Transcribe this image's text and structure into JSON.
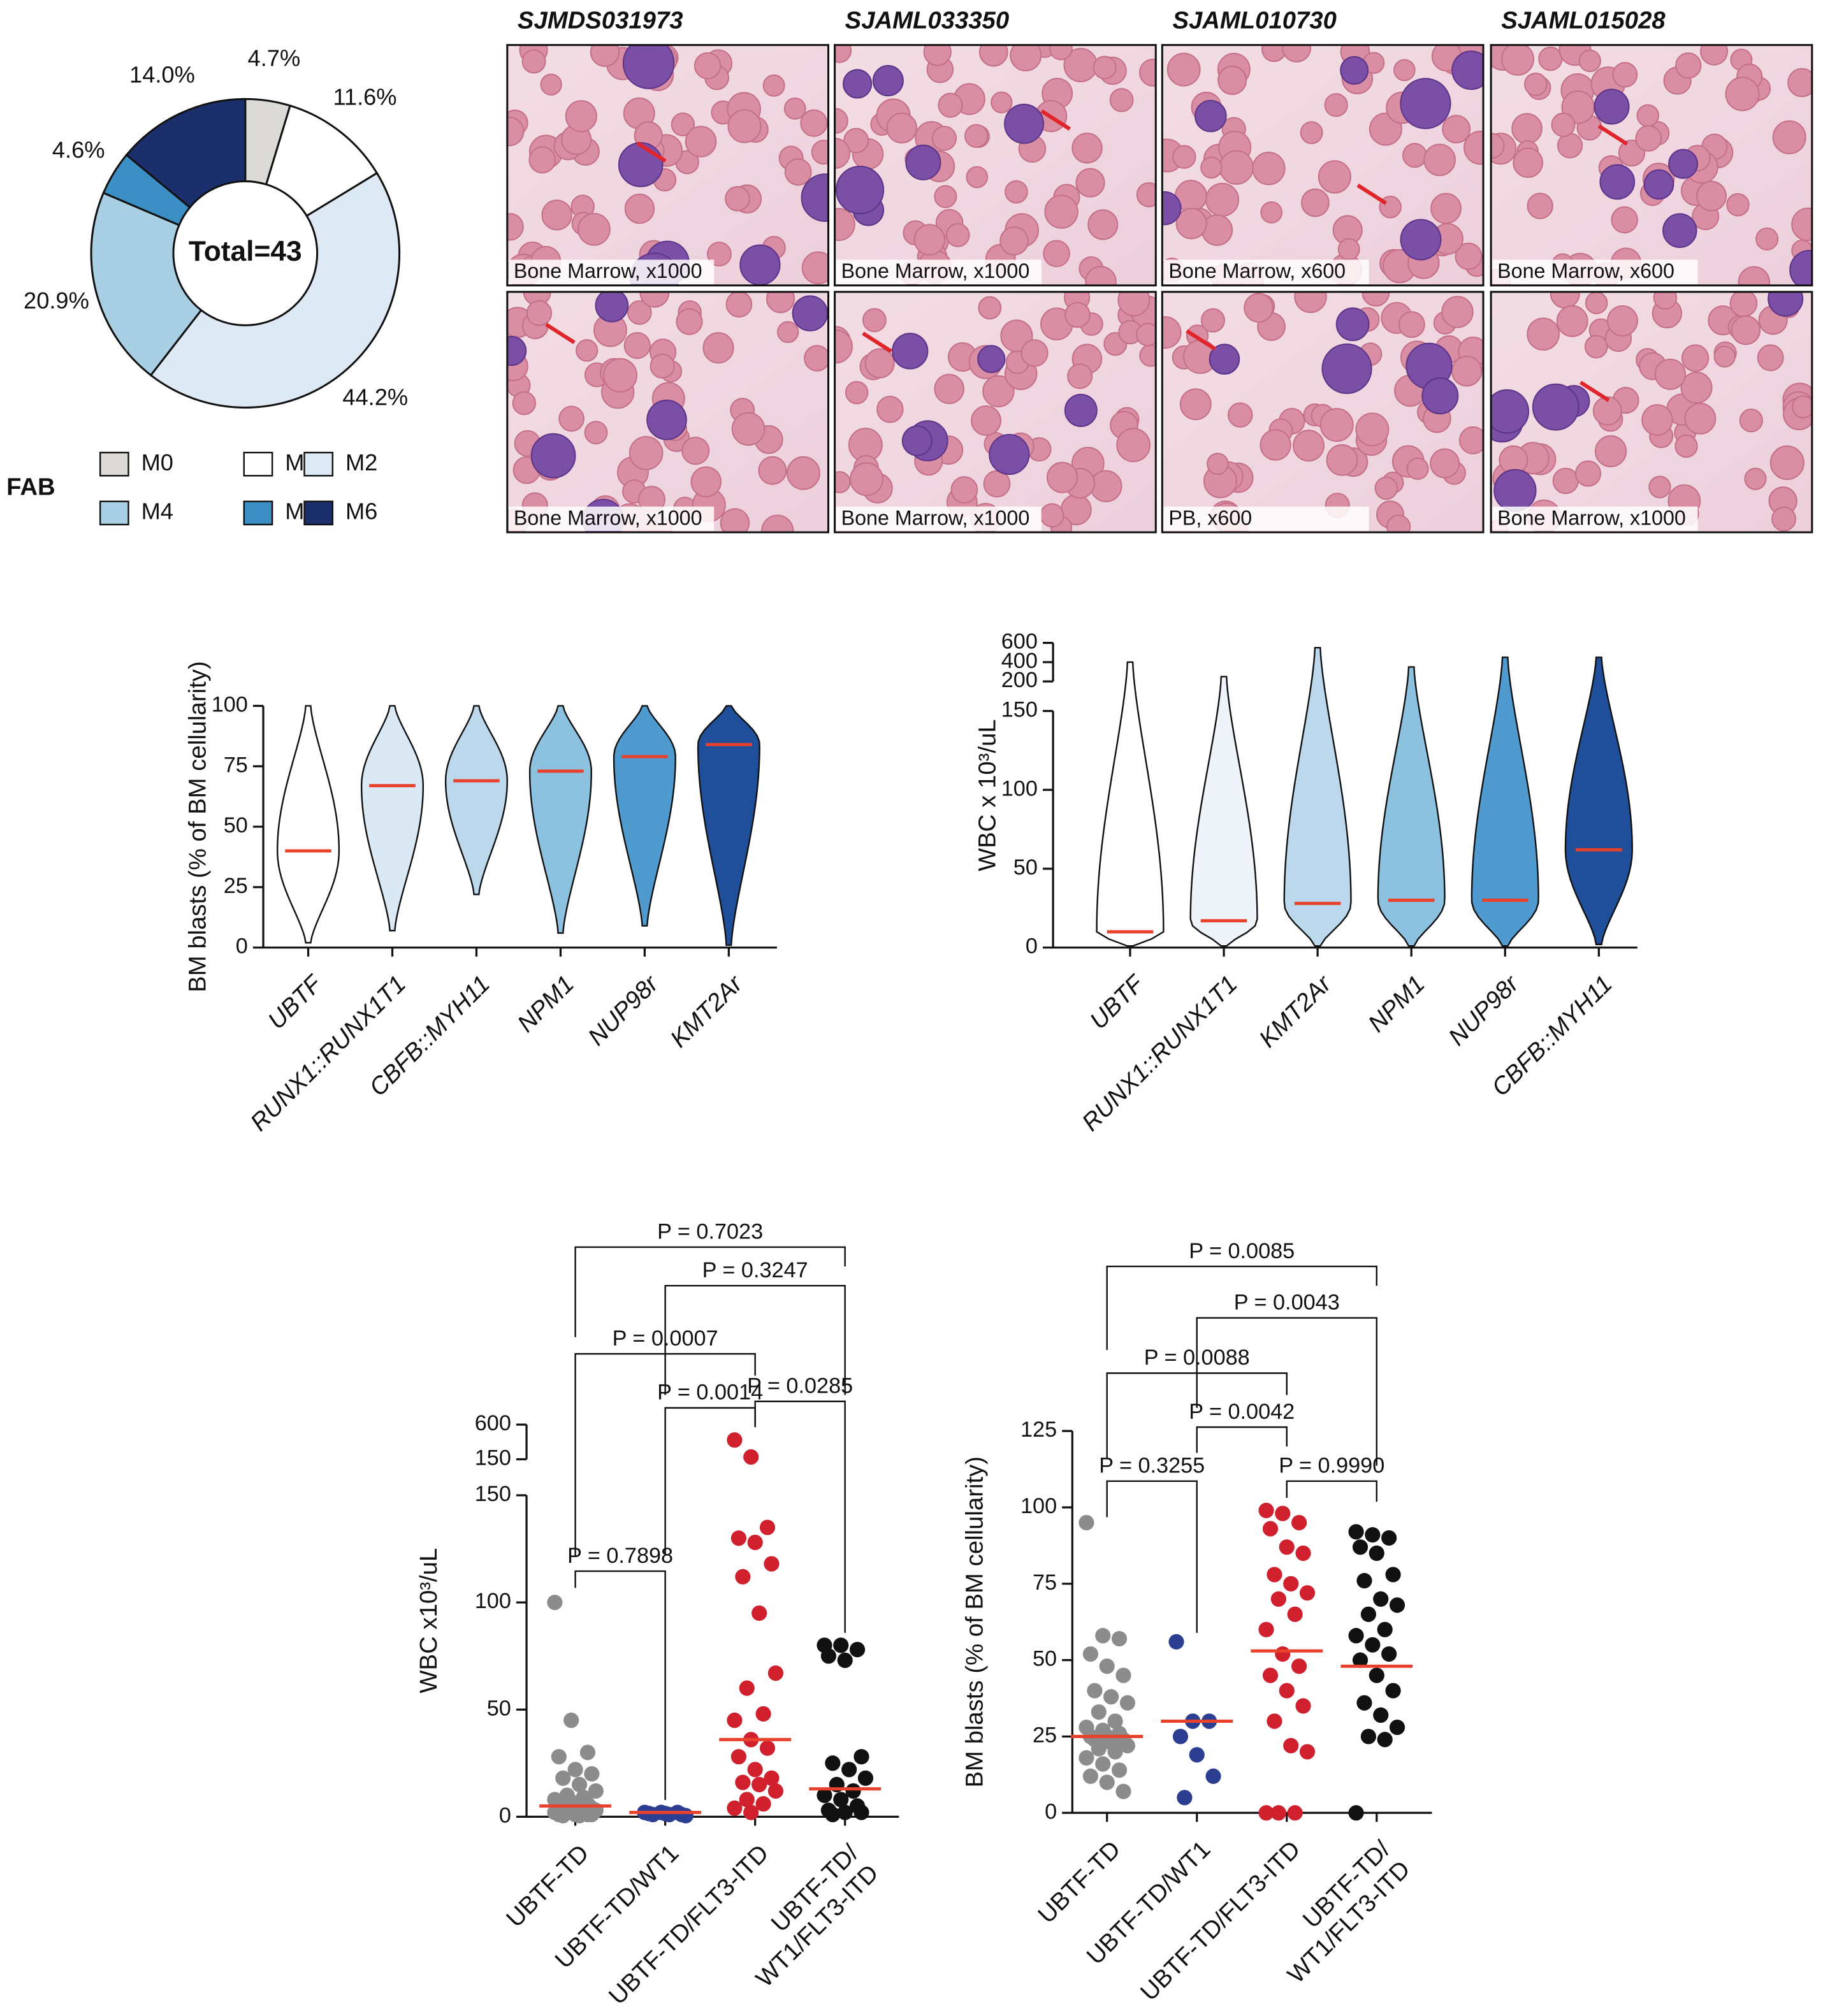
{
  "chart_data": [
    {
      "type": "donut",
      "center_label": "Total=43",
      "legend_title": "FAB",
      "categories": [
        "M0",
        "M1",
        "M2",
        "M4",
        "M5",
        "M6"
      ],
      "values": [
        4.7,
        11.6,
        44.2,
        20.9,
        4.6,
        14.0
      ],
      "value_labels": [
        "4.7%",
        "11.6%",
        "44.2%",
        "20.9%",
        "4.6%",
        "14.0%"
      ],
      "colors": [
        "#dcdad7",
        "#ffffff",
        "#dde9f4",
        "#a9cfe5",
        "#3b8fc4",
        "#1b2f6d"
      ]
    },
    {
      "type": "violin",
      "ylabel": "BM blasts (% of BM cellularity)",
      "categories": [
        "UBTF",
        "RUNX1::RUNX1T1",
        "CBFB::MYH11",
        "NPM1",
        "NUP98r",
        "KMT2Ar"
      ],
      "medians": [
        40,
        67,
        69,
        73,
        79,
        84
      ],
      "mins": [
        2,
        7,
        22,
        6,
        9,
        1
      ],
      "maxs": [
        100,
        100,
        100,
        100,
        100,
        100
      ],
      "colors": [
        "#ffffff",
        "#dbe9f5",
        "#bcd8ec",
        "#8cc1e0",
        "#4f9bcf",
        "#1f4f9a"
      ],
      "median_color": "#e8412c",
      "ylim": [
        0,
        100
      ],
      "yticks": [
        0,
        25,
        50,
        75,
        100
      ]
    },
    {
      "type": "violin",
      "ylabel": "WBC x 10³/uL",
      "categories": [
        "UBTF",
        "RUNX1::RUNX1T1",
        "KMT2Ar",
        "NPM1",
        "NUP98r",
        "CBFB::MYH11"
      ],
      "medians": [
        10,
        17,
        28,
        30,
        30,
        62
      ],
      "mins": [
        1,
        1,
        1,
        1,
        1,
        2
      ],
      "maxs": [
        400,
        250,
        550,
        350,
        450,
        450
      ],
      "colors": [
        "#ffffff",
        "#eef4fa",
        "#bcd8ec",
        "#8cc1e0",
        "#4f9bcf",
        "#1f4f9a"
      ],
      "median_color": "#e8412c",
      "ylim": [
        0,
        150
      ],
      "yticks": [
        0,
        50,
        100,
        150
      ],
      "y_break_lim": [
        200,
        600
      ],
      "y_break_ticks": [
        200,
        400,
        600
      ]
    },
    {
      "type": "dotplot",
      "ylabel": "WBC x10³/uL",
      "categories": [
        "UBTF-TD",
        "UBTF-TD/WT1",
        "UBTF-TD/FLT3-ITD",
        [
          "UBTF-TD/",
          "WT1/FLT3-ITD"
        ]
      ],
      "colors": [
        "#8c8c8c",
        "#2c3e91",
        "#d0202e",
        "#111111"
      ],
      "median_color": "#e8412c",
      "medians": [
        5,
        2,
        36,
        13
      ],
      "points": [
        [
          100,
          45,
          30,
          28,
          22,
          20,
          18,
          15,
          12,
          10,
          9,
          8,
          7,
          6,
          5,
          5,
          4,
          4,
          3,
          3,
          3,
          2,
          2,
          2,
          1,
          1,
          1,
          1,
          0.5,
          0.5
        ],
        [
          2,
          2,
          2,
          1.5,
          1.5,
          1,
          1,
          1,
          0.5
        ],
        [
          400,
          180,
          135,
          130,
          128,
          118,
          112,
          95,
          67,
          60,
          48,
          45,
          36,
          32,
          28,
          22,
          18,
          16,
          15,
          12,
          8,
          6,
          4,
          2
        ],
        [
          80,
          80,
          78,
          75,
          73,
          28,
          25,
          22,
          18,
          15,
          12,
          10,
          8,
          5,
          3,
          2,
          2,
          1
        ]
      ],
      "ylim": [
        0,
        150
      ],
      "yticks": [
        0,
        50,
        100,
        150
      ],
      "y_break_lim": [
        150,
        600
      ],
      "y_break_ticks": [
        150,
        600
      ],
      "comparisons": [
        {
          "groups": [
            0,
            3
          ],
          "label": "P = 0.7023"
        },
        {
          "groups": [
            1,
            3
          ],
          "label": "P = 0.3247"
        },
        {
          "groups": [
            0,
            2
          ],
          "label": "P = 0.0007"
        },
        {
          "groups": [
            1,
            2
          ],
          "label": "P = 0.0014"
        },
        {
          "groups": [
            2,
            3
          ],
          "label": "P = 0.0285"
        },
        {
          "groups": [
            0,
            1
          ],
          "label": "P = 0.7898"
        }
      ]
    },
    {
      "type": "dotplot",
      "ylabel": "BM blasts (% of BM cellularity)",
      "categories": [
        "UBTF-TD",
        "UBTF-TD/WT1",
        "UBTF-TD/FLT3-ITD",
        [
          "UBTF-TD/",
          "WT1/FLT3-ITD"
        ]
      ],
      "colors": [
        "#8c8c8c",
        "#2c3e91",
        "#d0202e",
        "#111111"
      ],
      "median_color": "#e8412c",
      "medians": [
        25,
        30,
        53,
        48
      ],
      "points": [
        [
          95,
          58,
          57,
          52,
          48,
          45,
          40,
          38,
          36,
          33,
          30,
          28,
          27,
          26,
          25,
          25,
          24,
          24,
          23,
          22,
          21,
          20,
          18,
          16,
          14,
          12,
          10,
          7
        ],
        [
          56,
          30,
          30,
          25,
          19,
          12,
          5
        ],
        [
          99,
          98,
          95,
          93,
          87,
          85,
          78,
          75,
          72,
          70,
          65,
          60,
          52,
          48,
          45,
          40,
          35,
          30,
          22,
          20,
          0,
          0,
          0
        ],
        [
          92,
          91,
          90,
          87,
          85,
          78,
          76,
          70,
          68,
          65,
          60,
          58,
          55,
          52,
          50,
          45,
          40,
          36,
          32,
          28,
          25,
          24,
          0
        ]
      ],
      "ylim": [
        0,
        125
      ],
      "yticks": [
        0,
        25,
        50,
        75,
        100,
        125
      ],
      "comparisons": [
        {
          "groups": [
            0,
            3
          ],
          "label": "P = 0.0085"
        },
        {
          "groups": [
            1,
            3
          ],
          "label": "P = 0.0043"
        },
        {
          "groups": [
            0,
            2
          ],
          "label": "P = 0.0088"
        },
        {
          "groups": [
            1,
            2
          ],
          "label": "P = 0.0042"
        },
        {
          "groups": [
            0,
            1
          ],
          "label": "P = 0.3255"
        },
        {
          "groups": [
            2,
            3
          ],
          "label": "P = 0.9990"
        }
      ]
    }
  ],
  "micrographs": {
    "samples": [
      "SJMDS031973",
      "SJAML033350",
      "SJAML010730",
      "SJAML015028"
    ],
    "captions": [
      [
        "Bone Marrow, x1000",
        "Bone Marrow, x1000",
        "Bone Marrow, x600",
        "Bone Marrow, x600"
      ],
      [
        "Bone Marrow, x1000",
        "Bone Marrow, x1000",
        "PB, x600",
        "Bone Marrow, x1000"
      ]
    ]
  }
}
